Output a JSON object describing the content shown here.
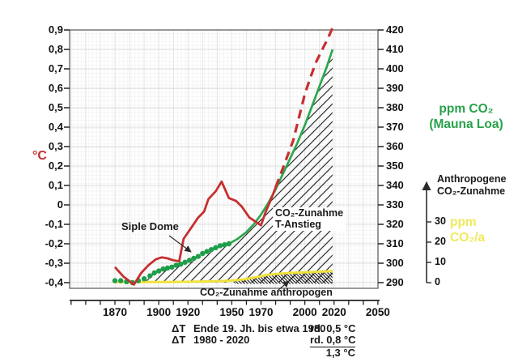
{
  "labels": {
    "left_axis_title": "°C",
    "right_axis_title_line1": "ppm CO₂",
    "right_axis_title_line2": "(Mauna Loa)",
    "anthro_axis_line1": "Anthropogene",
    "anthro_axis_line2": "CO₂-Zunahme",
    "rate_axis_title_line1": "ppm",
    "rate_axis_title_line2": "CO₂/a",
    "siple_dome": "Siple Dome",
    "hatch_label_line1": "CO₂-Zunahme",
    "hatch_label_line2": "T-Anstieg",
    "anthropogen_band": "CO₂-Zunahme anthropogen",
    "summary": {
      "row1_sym": "ΔT",
      "row1_text": "Ende 19. Jh. bis etwa 1980",
      "row1_val": "rd. 0,5 °C",
      "row2_sym": "ΔT",
      "row2_text": "1980 - 2020",
      "row2_val": "rd. 0,8 °C",
      "total": "1,3 °C"
    }
  },
  "colors": {
    "temperature": "#c62f2f",
    "temperature_label": "#c62f2f",
    "co2_line": "#2aa84e",
    "co2_dots": "#1e9e4a",
    "co2_title": "#27a24a",
    "rate_line": "#efe23c",
    "rate_title": "#f0e95f",
    "hatch": "#2b2b2b",
    "grid_minor": "#f2f2f2",
    "grid_major": "#dcdcdc",
    "axis": "#222222"
  },
  "chart_data": {
    "type": "line",
    "grid": "on",
    "x_axis": {
      "range": [
        1839,
        2050
      ],
      "minor_tick_step": 10,
      "labeled_ticks": [
        "1870",
        "1900",
        "1920",
        "1950",
        "1970",
        "2000",
        "2020",
        "2050"
      ],
      "labeled_tick_years": [
        1870,
        1900,
        1920,
        1950,
        1970,
        2000,
        2020,
        2050
      ]
    },
    "left_axis": {
      "label": "°C",
      "range": [
        -0.4,
        0.9
      ],
      "tick_step": 0.1,
      "tick_labels_top_to_bottom": [
        "0,9",
        "0,8",
        "0,7",
        "0,6",
        "0,5",
        "0,4",
        "0,3",
        "0,2",
        "0,1",
        "0",
        "-0,1",
        "-0,2",
        "-0,3",
        "-0,4"
      ]
    },
    "right_axis": {
      "label": "ppm CO₂ (Mauna Loa)",
      "range": [
        290,
        420
      ],
      "tick_step": 10,
      "tick_labels_top_to_bottom": [
        "420",
        "410",
        "400",
        "390",
        "380",
        "370",
        "360",
        "350",
        "340",
        "330",
        "320",
        "310",
        "300",
        "290"
      ]
    },
    "rate_axis": {
      "label": "ppm CO₂/a",
      "arrow_label": "Anthropogene CO₂-Zunahme",
      "range": [
        0,
        30
      ],
      "tick_values": [
        30,
        20,
        10,
        0
      ]
    },
    "series": {
      "temp_measured": {
        "label": "T-Anstieg",
        "style": "solid",
        "axis": "left",
        "points": [
          [
            1870,
            -0.32
          ],
          [
            1876,
            -0.37
          ],
          [
            1883,
            -0.41
          ],
          [
            1888,
            -0.35
          ],
          [
            1893,
            -0.31
          ],
          [
            1898,
            -0.28
          ],
          [
            1902,
            -0.27
          ],
          [
            1906,
            -0.275
          ],
          [
            1910,
            -0.285
          ],
          [
            1914,
            -0.29
          ],
          [
            1917,
            -0.175
          ],
          [
            1922,
            -0.12
          ],
          [
            1927,
            -0.065
          ],
          [
            1931,
            -0.035
          ],
          [
            1934,
            0.03
          ],
          [
            1939,
            0.07
          ],
          [
            1943,
            0.12
          ],
          [
            1948,
            0.035
          ],
          [
            1953,
            0.02
          ],
          [
            1957,
            -0.01
          ],
          [
            1962,
            -0.065
          ],
          [
            1966,
            -0.085
          ],
          [
            1970,
            -0.105
          ],
          [
            1973,
            -0.04
          ],
          [
            1978,
            0.05
          ],
          [
            1980,
            0.09
          ]
        ]
      },
      "temp_projection": {
        "label": "T-Anstieg (gestrichelt)",
        "style": "dashed",
        "axis": "left",
        "points": [
          [
            1980,
            0.09
          ],
          [
            1984,
            0.17
          ],
          [
            1988,
            0.25
          ],
          [
            1992,
            0.33
          ],
          [
            1996,
            0.45
          ],
          [
            2000,
            0.57
          ],
          [
            2004,
            0.66
          ],
          [
            2008,
            0.74
          ],
          [
            2012,
            0.8
          ],
          [
            2016,
            0.86
          ],
          [
            2019.5,
            0.92
          ]
        ]
      },
      "co2_ice_core_dots": {
        "label": "Siple Dome",
        "style": "scatter",
        "axis": "right",
        "points": [
          [
            1870,
            291
          ],
          [
            1874,
            291
          ],
          [
            1878,
            290.5
          ],
          [
            1882,
            290
          ],
          [
            1886,
            291
          ],
          [
            1890,
            292
          ],
          [
            1894,
            293.5
          ],
          [
            1897,
            295
          ],
          [
            1900,
            296
          ],
          [
            1903,
            297
          ],
          [
            1906,
            297.5
          ],
          [
            1909,
            298
          ],
          [
            1912,
            299
          ],
          [
            1915,
            299.5
          ],
          [
            1918,
            300.5
          ],
          [
            1921,
            301.5
          ],
          [
            1924,
            302.5
          ],
          [
            1927,
            303.5
          ],
          [
            1930,
            305
          ],
          [
            1933,
            306
          ],
          [
            1936,
            307
          ],
          [
            1939,
            308
          ],
          [
            1942,
            309
          ],
          [
            1945,
            309.5
          ],
          [
            1948,
            310
          ]
        ]
      },
      "co2_mauna_loa": {
        "label": "ppm CO₂ (Mauna Loa)",
        "style": "solid",
        "axis": "right",
        "points": [
          [
            1948,
            310
          ],
          [
            1954,
            312.5
          ],
          [
            1960,
            316
          ],
          [
            1965,
            320
          ],
          [
            1970,
            325
          ],
          [
            1975,
            331
          ],
          [
            1980,
            338
          ],
          [
            1985,
            346
          ],
          [
            1990,
            354
          ],
          [
            1995,
            362
          ],
          [
            2000,
            371
          ],
          [
            2005,
            381
          ],
          [
            2010,
            391
          ],
          [
            2015,
            401
          ],
          [
            2019,
            410
          ]
        ]
      },
      "co2_rate": {
        "label": "CO₂-Zunahme anthropogen",
        "style": "solid",
        "axis": "rate",
        "points": [
          [
            1870,
            0.2
          ],
          [
            1900,
            0.3
          ],
          [
            1920,
            0.4
          ],
          [
            1940,
            0.7
          ],
          [
            1950,
            1.0
          ],
          [
            1958,
            1.6
          ],
          [
            1966,
            2.6
          ],
          [
            1974,
            3.8
          ],
          [
            1982,
            4.4
          ],
          [
            1990,
            4.8
          ],
          [
            2000,
            5.1
          ],
          [
            2010,
            5.4
          ],
          [
            2019,
            5.7
          ]
        ]
      }
    },
    "areas": {
      "hatched_total": {
        "label": "CO₂-Zunahme T-Anstieg",
        "from_year": 1889,
        "to_year": 2019,
        "baseline_ppm": 290
      },
      "hatched_anthropogenic": {
        "label": "CO₂-Zunahme anthropogen",
        "from_year": 1952,
        "to_year": 2019,
        "baseline_rate": 0
      }
    },
    "annotations": {
      "siple_dome": {
        "text": "Siple Dome",
        "arrow_from": [
          209,
          291
        ],
        "arrow_to": [
          236,
          311
        ]
      },
      "anthropogen_band": {
        "text": "CO₂-Zunahme anthropogen",
        "arrow_from": [
          344,
          358
        ],
        "arrow_to": [
          357,
          347
        ]
      }
    }
  }
}
